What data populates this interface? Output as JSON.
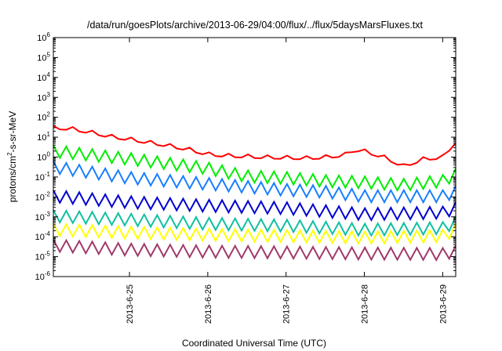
{
  "chart_data": {
    "type": "line",
    "title": "/data/run/goesPlots/archive/2013-06-29/04:00/flux/../flux/5daysMarsFluxes.txt",
    "xlabel": "Coordinated Universal Time (UTC)",
    "ylabel": "protons/cm2-s-sr-MeV",
    "ylabel_parts": {
      "base": "protons/cm",
      "sup": "2",
      "rest": "-s-sr-MeV"
    },
    "x_axis_unit": "day",
    "xlim": [
      "2013-06-24T00:40",
      "2013-06-29T04:00"
    ],
    "ylim": [
      1e-06,
      1000000.0
    ],
    "yscale": "log",
    "y_ticks": [
      {
        "base": "10",
        "exp": "-6",
        "value": 1e-06
      },
      {
        "base": "10",
        "exp": "-5",
        "value": 1e-05
      },
      {
        "base": "10",
        "exp": "-4",
        "value": 0.0001
      },
      {
        "base": "10",
        "exp": "-3",
        "value": 0.001
      },
      {
        "base": "10",
        "exp": "-2",
        "value": 0.01
      },
      {
        "base": "10",
        "exp": "-1",
        "value": 0.1
      },
      {
        "base": "10",
        "exp": "0",
        "value": 1
      },
      {
        "base": "10",
        "exp": "1",
        "value": 10
      },
      {
        "base": "10",
        "exp": "2",
        "value": 100
      },
      {
        "base": "10",
        "exp": "3",
        "value": 1000
      },
      {
        "base": "10",
        "exp": "4",
        "value": 10000
      },
      {
        "base": "10",
        "exp": "5",
        "value": 100000
      },
      {
        "base": "10",
        "exp": "6",
        "value": 1000000
      }
    ],
    "x_ticks": [
      {
        "label": "2013-6-25",
        "value": "2013-06-25T00:00"
      },
      {
        "label": "2013-6-26",
        "value": "2013-06-26T00:00"
      },
      {
        "label": "2013-6-27",
        "value": "2013-06-27T00:00"
      },
      {
        "label": "2013-6-28",
        "value": "2013-06-28T00:00"
      },
      {
        "label": "2013-6-29",
        "value": "2013-06-29T00:00"
      }
    ],
    "grid": false,
    "legend": "none",
    "series": [
      {
        "color": "#ff0000",
        "style": "smooth",
        "points": [
          [
            "2013-06-24T00:40",
            30
          ],
          [
            "2013-06-24T06:00",
            27
          ],
          [
            "2013-06-24T12:00",
            18
          ],
          [
            "2013-06-24T18:00",
            11
          ],
          [
            "2013-06-25T00:00",
            8
          ],
          [
            "2013-06-25T06:00",
            5.5
          ],
          [
            "2013-06-25T12:00",
            3.8
          ],
          [
            "2013-06-25T18:00",
            2.5
          ],
          [
            "2013-06-26T00:00",
            1.4
          ],
          [
            "2013-06-26T06:00",
            1.2
          ],
          [
            "2013-06-26T12:00",
            1.1
          ],
          [
            "2013-06-26T18:00",
            1.0
          ],
          [
            "2013-06-27T00:00",
            0.95
          ],
          [
            "2013-06-27T06:00",
            0.9
          ],
          [
            "2013-06-27T12:00",
            1.0
          ],
          [
            "2013-06-27T18:00",
            1.3
          ],
          [
            "2013-06-27T21:00",
            2.5
          ],
          [
            "2013-06-28T00:00",
            2.0
          ],
          [
            "2013-06-28T06:00",
            1.0
          ],
          [
            "2013-06-28T12:00",
            0.35
          ],
          [
            "2013-06-28T18:00",
            0.8
          ],
          [
            "2013-06-29T00:00",
            1.0
          ],
          [
            "2013-06-29T04:00",
            6
          ]
        ]
      },
      {
        "color": "#00ee00",
        "style": "sawtooth",
        "points": [
          [
            "2013-06-24T00:40",
            2.2
          ],
          [
            "2013-06-25T00:00",
            0.9
          ],
          [
            "2013-06-26T00:00",
            0.3
          ],
          [
            "2013-06-26T12:00",
            0.12
          ],
          [
            "2013-06-27T00:00",
            0.1
          ],
          [
            "2013-06-27T12:00",
            0.07
          ],
          [
            "2013-06-28T00:00",
            0.06
          ],
          [
            "2013-06-28T12:00",
            0.045
          ],
          [
            "2013-06-29T00:00",
            0.07
          ],
          [
            "2013-06-29T04:00",
            0.15
          ]
        ]
      },
      {
        "color": "#1a7fff",
        "style": "sawtooth",
        "points": [
          [
            "2013-06-24T00:40",
            0.35
          ],
          [
            "2013-06-25T00:00",
            0.1
          ],
          [
            "2013-06-26T00:00",
            0.05
          ],
          [
            "2013-06-27T00:00",
            0.025
          ],
          [
            "2013-06-27T12:00",
            0.02
          ],
          [
            "2013-06-28T00:00",
            0.012
          ],
          [
            "2013-06-29T00:00",
            0.012
          ],
          [
            "2013-06-29T04:00",
            0.02
          ]
        ]
      },
      {
        "color": "#0000d0",
        "style": "sawtooth",
        "points": [
          [
            "2013-06-24T00:40",
            0.012
          ],
          [
            "2013-06-25T00:00",
            0.006
          ],
          [
            "2013-06-26T00:00",
            0.004
          ],
          [
            "2013-06-27T00:00",
            0.003
          ],
          [
            "2013-06-28T00:00",
            0.0015
          ],
          [
            "2013-06-29T00:00",
            0.0018
          ],
          [
            "2013-06-29T04:00",
            0.003
          ]
        ]
      },
      {
        "color": "#10c0a0",
        "style": "sawtooth",
        "points": [
          [
            "2013-06-24T00:40",
            0.0012
          ],
          [
            "2013-06-25T00:00",
            0.0008
          ],
          [
            "2013-06-26T00:00",
            0.0005
          ],
          [
            "2013-06-27T00:00",
            0.0004
          ],
          [
            "2013-06-28T00:00",
            0.00025
          ],
          [
            "2013-06-29T00:00",
            0.0003
          ],
          [
            "2013-06-29T04:00",
            0.0006
          ]
        ]
      },
      {
        "color": "#ffff00",
        "style": "sawtooth",
        "points": [
          [
            "2013-06-24T00:40",
            0.00025
          ],
          [
            "2013-06-25T00:00",
            0.00018
          ],
          [
            "2013-06-26T00:00",
            0.00014
          ],
          [
            "2013-06-27T00:00",
            0.00012
          ],
          [
            "2013-06-28T00:00",
            0.0001
          ],
          [
            "2013-06-29T00:00",
            0.00012
          ],
          [
            "2013-06-29T04:00",
            0.00025
          ]
        ]
      },
      {
        "color": "#a03a6a",
        "style": "sawtooth",
        "points": [
          [
            "2013-06-24T00:40",
            4e-05
          ],
          [
            "2013-06-25T00:00",
            2.5e-05
          ],
          [
            "2013-06-26T00:00",
            2e-05
          ],
          [
            "2013-06-27T00:00",
            1.8e-05
          ],
          [
            "2013-06-28T00:00",
            1.6e-05
          ],
          [
            "2013-06-29T00:00",
            1.5e-05
          ],
          [
            "2013-06-29T04:00",
            2e-05
          ]
        ]
      }
    ]
  }
}
